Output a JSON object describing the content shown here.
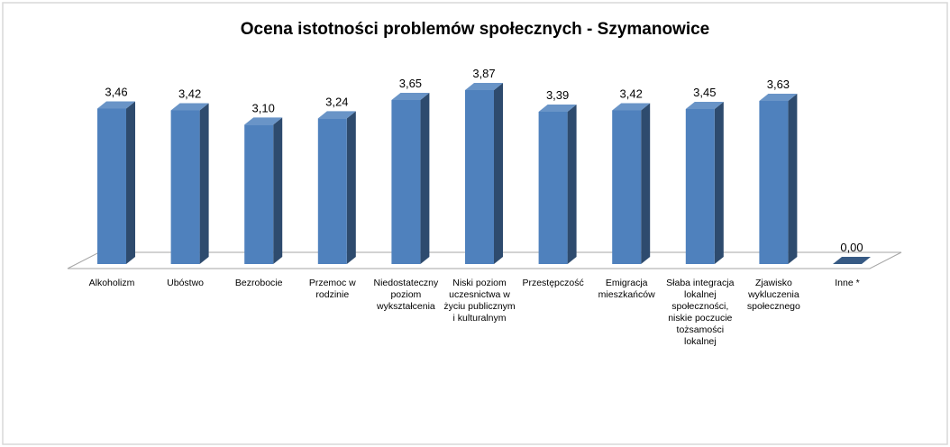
{
  "chart_data": {
    "type": "bar3d",
    "title": "Ocena istotności problemów społecznych - Szymanowice",
    "categories": [
      "Alkoholizm",
      "Ubóstwo",
      "Bezrobocie",
      "Przemoc w rodzinie",
      "Niedostateczny poziom wykształcenia",
      "Niski poziom uczesnictwa w życiu publicznym i kulturalnym",
      "Przestępczość",
      "Emigracja mieszkańców",
      "Słaba integracja lokalnej społeczności, niskie poczucie tożsamości lokalnej",
      "Zjawisko wykluczenia społecznego",
      "Inne *"
    ],
    "values": [
      3.46,
      3.42,
      3.1,
      3.24,
      3.65,
      3.87,
      3.39,
      3.42,
      3.45,
      3.63,
      0.0
    ],
    "value_labels": [
      "3,46",
      "3,42",
      "3,10",
      "3,24",
      "3,65",
      "3,87",
      "3,39",
      "3,42",
      "3,45",
      "3,63",
      "0,00"
    ],
    "color": "#4f81bd"
  }
}
